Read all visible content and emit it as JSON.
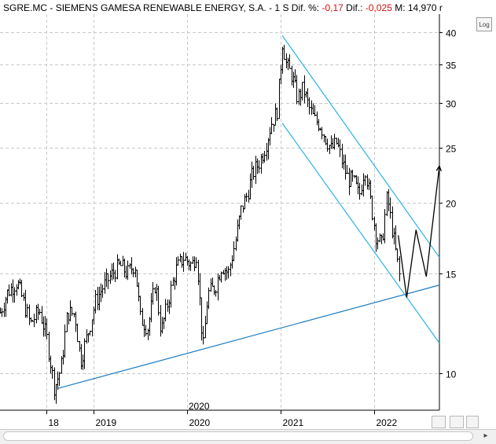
{
  "header": {
    "symbol": "SGRE.MC",
    "sep": " - ",
    "name": "SIEMENS GAMESA RENEWABLE ENERGY, S.A.",
    "period": " -   1 S",
    "dif_pct_label": "  Dif. %: ",
    "dif_pct_value": "-0,17",
    "dif_label": "  Dif.: ",
    "dif_value": "-0,025",
    "m_label": "  M: ",
    "m_value": "14,970",
    "trail": "  r"
  },
  "controls": {
    "log_label": "Log"
  },
  "colors": {
    "price": "#000000",
    "trendline": "#1a7ac0",
    "channel": "#27b3e8",
    "grid": "#c8c8c8"
  },
  "chart_data": {
    "type": "candlestick",
    "scale": "log",
    "ylim": [
      8.6,
      43
    ],
    "y_ticks": [
      10,
      15,
      20,
      25,
      30,
      35,
      40
    ],
    "x_ticks": [
      {
        "t": 2018.5,
        "label": "18"
      },
      {
        "t": 2019.0,
        "label": "2019"
      },
      {
        "t": 2020.0,
        "label": "2020"
      },
      {
        "t": 2021.0,
        "label": "2021"
      },
      {
        "t": 2022.0,
        "label": "2022"
      }
    ],
    "x_label_extra": {
      "t": 2020.0,
      "label": "2020"
    },
    "xlim": [
      2018.0,
      2022.7
    ],
    "grid": true,
    "price_anchors": [
      [
        2018.0,
        12.8
      ],
      [
        2018.08,
        13.9
      ],
      [
        2018.18,
        14.5
      ],
      [
        2018.24,
        13.5
      ],
      [
        2018.32,
        12.2
      ],
      [
        2018.42,
        12.9
      ],
      [
        2018.5,
        11.5
      ],
      [
        2018.58,
        9.4
      ],
      [
        2018.65,
        10.2
      ],
      [
        2018.72,
        12.8
      ],
      [
        2018.8,
        12.7
      ],
      [
        2018.86,
        10.5
      ],
      [
        2018.94,
        11.8
      ],
      [
        2019.02,
        13.4
      ],
      [
        2019.1,
        14.2
      ],
      [
        2019.2,
        15.0
      ],
      [
        2019.28,
        15.5
      ],
      [
        2019.36,
        15.0
      ],
      [
        2019.44,
        15.6
      ],
      [
        2019.5,
        12.5
      ],
      [
        2019.58,
        12.0
      ],
      [
        2019.66,
        14.5
      ],
      [
        2019.72,
        11.8
      ],
      [
        2019.8,
        13.5
      ],
      [
        2019.88,
        15.2
      ],
      [
        2019.96,
        16.0
      ],
      [
        2020.05,
        15.5
      ],
      [
        2020.1,
        16.3
      ],
      [
        2020.17,
        11.0
      ],
      [
        2020.22,
        13.8
      ],
      [
        2020.3,
        14.2
      ],
      [
        2020.37,
        15.5
      ],
      [
        2020.44,
        15.0
      ],
      [
        2020.52,
        17.2
      ],
      [
        2020.58,
        19.5
      ],
      [
        2020.64,
        20.6
      ],
      [
        2020.7,
        22.5
      ],
      [
        2020.78,
        23.7
      ],
      [
        2020.84,
        25.3
      ],
      [
        2020.9,
        27.6
      ],
      [
        2020.96,
        28.9
      ],
      [
        2021.02,
        38.5
      ],
      [
        2021.06,
        35.0
      ],
      [
        2021.12,
        33.5
      ],
      [
        2021.18,
        30.5
      ],
      [
        2021.24,
        31.8
      ],
      [
        2021.3,
        29.5
      ],
      [
        2021.36,
        28.0
      ],
      [
        2021.42,
        27.5
      ],
      [
        2021.48,
        26.0
      ],
      [
        2021.54,
        24.8
      ],
      [
        2021.6,
        25.5
      ],
      [
        2021.66,
        23.5
      ],
      [
        2021.72,
        22.0
      ],
      [
        2021.78,
        21.8
      ],
      [
        2021.84,
        20.5
      ],
      [
        2021.9,
        23.2
      ],
      [
        2021.96,
        20.2
      ],
      [
        2022.02,
        17.5
      ],
      [
        2022.08,
        16.8
      ],
      [
        2022.14,
        20.6
      ],
      [
        2022.18,
        18.5
      ],
      [
        2022.24,
        16.0
      ],
      [
        2022.28,
        14.5
      ]
    ],
    "projection": [
      [
        2022.26,
        17.5
      ],
      [
        2022.35,
        13.6
      ],
      [
        2022.45,
        17.9
      ],
      [
        2022.56,
        14.8
      ],
      [
        2022.7,
        23.2
      ]
    ],
    "lines": [
      {
        "name": "support",
        "from": [
          2018.62,
          9.4
        ],
        "to": [
          2022.7,
          14.3
        ]
      },
      {
        "name": "channel-upper",
        "from": [
          2021.02,
          39.4
        ],
        "to": [
          2022.7,
          16.0
        ]
      },
      {
        "name": "channel-lower",
        "from": [
          2021.02,
          27.6
        ],
        "to": [
          2022.7,
          11.3
        ]
      }
    ]
  }
}
